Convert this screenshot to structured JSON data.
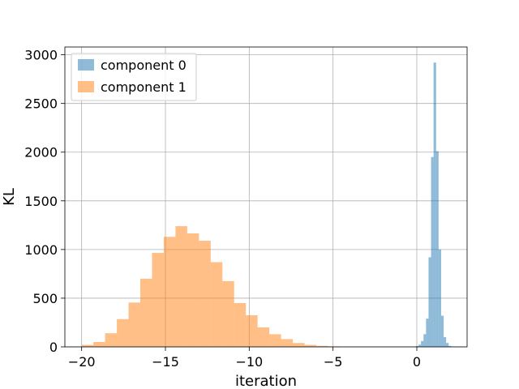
{
  "chart_data": {
    "type": "histogram",
    "title": "",
    "xlabel": "iteration",
    "ylabel": "KL",
    "xlim": [
      -21,
      3
    ],
    "ylim": [
      0,
      3080
    ],
    "xticks": [
      -20,
      -15,
      -10,
      -5,
      0
    ],
    "yticks": [
      0,
      500,
      1000,
      1500,
      2000,
      2500,
      3000
    ],
    "grid": true,
    "legend_position": "upper-left",
    "series": [
      {
        "name": "component 0",
        "color": "#1f77b4",
        "opacity": 0.5,
        "bin_start": -0.05,
        "bin_width": 0.15,
        "counts": [
          8,
          22,
          60,
          130,
          290,
          920,
          1950,
          2920,
          2010,
          1000,
          320,
          100,
          40,
          10
        ]
      },
      {
        "name": "component 1",
        "color": "#ff7f0e",
        "opacity": 0.5,
        "bin_start": -20.0,
        "bin_width": 0.7,
        "counts": [
          20,
          50,
          140,
          285,
          455,
          700,
          965,
          1130,
          1240,
          1165,
          1090,
          870,
          675,
          450,
          325,
          200,
          130,
          80,
          40,
          20,
          10,
          5
        ]
      }
    ]
  }
}
